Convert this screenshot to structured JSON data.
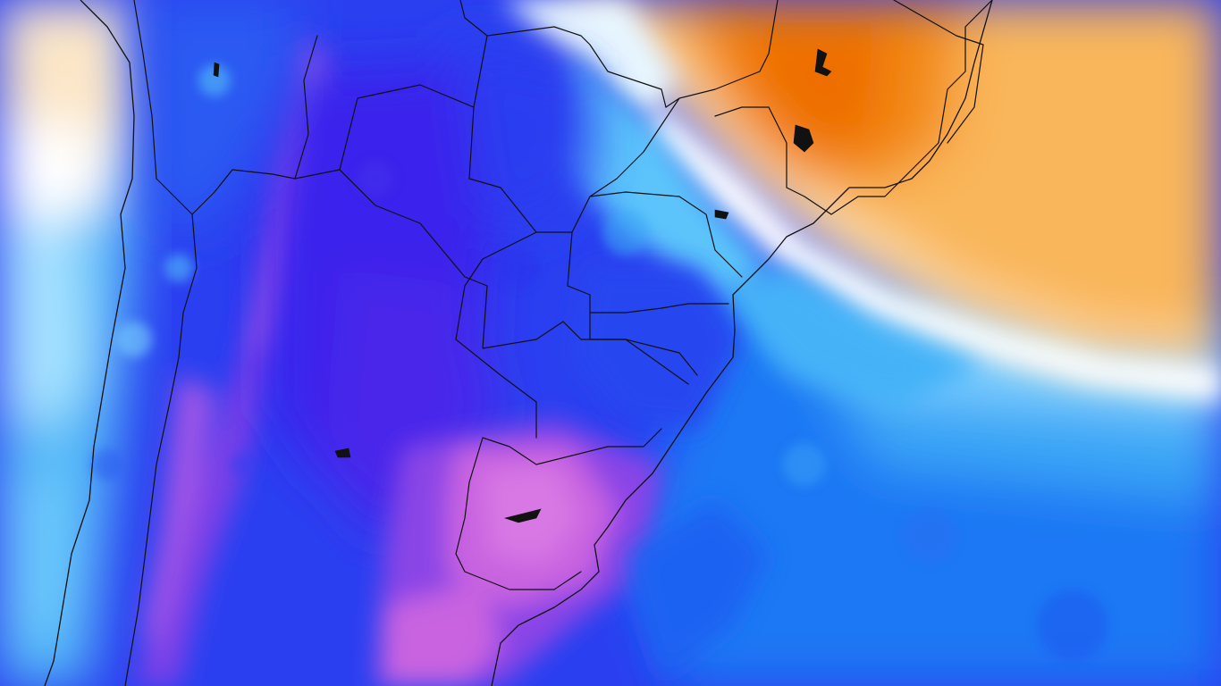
{
  "map": {
    "type": "weather-anomaly-field",
    "region": "southern-south-america",
    "color_scale": {
      "warm_strong": "#f07800",
      "warm_mid": "#f9a83a",
      "warm_light": "#fcd9a0",
      "neutral": "#ffffff",
      "cool_light": "#8fdcff",
      "cool_mid": "#2fa8f4",
      "cool_strong": "#1450f0",
      "cold": "#2814e8",
      "very_cold": "#7a3ce6",
      "extreme_cold": "#d66ae0"
    },
    "overlays": [
      "country-borders",
      "state-borders",
      "coastline",
      "lakes"
    ],
    "legend": null,
    "labels": []
  }
}
